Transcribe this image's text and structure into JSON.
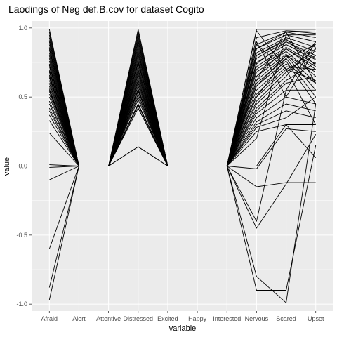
{
  "chart_data": {
    "type": "line",
    "title": "Laodings of Neg def.B.cov for dataset Cogito",
    "xlabel": "variable",
    "ylabel": "value",
    "categories": [
      "Afraid",
      "Alert",
      "Attentive",
      "Distressed",
      "Excited",
      "Happy",
      "Interested",
      "Nervous",
      "Scared",
      "Upset"
    ],
    "ylim": [
      -1.05,
      1.05
    ],
    "yticks": [
      -1.0,
      -0.5,
      0.0,
      0.5,
      1.0
    ],
    "ytick_labels": [
      "-1.0",
      "-0.5",
      "0.0",
      "0.5",
      "1.0"
    ],
    "grid": true,
    "legend": "none",
    "colors": {
      "panel_background": "#ebebeb",
      "grid_major": "#ffffff",
      "line": "#000000"
    },
    "series": [
      {
        "values": [
          0.99,
          0,
          0,
          0.99,
          0,
          0,
          0,
          0.99,
          0.99,
          0.99
        ]
      },
      {
        "values": [
          0.97,
          0,
          0,
          0.97,
          0,
          0,
          0,
          0.93,
          0.98,
          0.96
        ]
      },
      {
        "values": [
          0.95,
          0,
          0,
          0.95,
          0,
          0,
          0,
          0.88,
          0.97,
          0.93
        ]
      },
      {
        "values": [
          0.93,
          0,
          0,
          0.93,
          0,
          0,
          0,
          0.85,
          0.95,
          0.9
        ]
      },
      {
        "values": [
          0.91,
          0,
          0,
          0.91,
          0,
          0,
          0,
          0.82,
          0.93,
          0.86
        ]
      },
      {
        "values": [
          0.9,
          0,
          0,
          0.9,
          0,
          0,
          0,
          0.8,
          0.91,
          0.83
        ]
      },
      {
        "values": [
          0.88,
          0,
          0,
          0.88,
          0,
          0,
          0,
          0.78,
          0.9,
          0.8
        ]
      },
      {
        "values": [
          0.86,
          0,
          0,
          0.86,
          0,
          0,
          0,
          0.75,
          0.88,
          0.77
        ]
      },
      {
        "values": [
          0.84,
          0,
          0,
          0.84,
          0,
          0,
          0,
          0.72,
          0.86,
          0.74
        ]
      },
      {
        "values": [
          0.82,
          0,
          0,
          0.82,
          0,
          0,
          0,
          0.7,
          0.85,
          0.7
        ]
      },
      {
        "values": [
          0.8,
          0,
          0,
          0.8,
          0,
          0,
          0,
          0.68,
          0.83,
          0.65
        ]
      },
      {
        "values": [
          0.78,
          0,
          0,
          0.78,
          0,
          0,
          0,
          0.65,
          0.81,
          0.6
        ]
      },
      {
        "values": [
          0.76,
          0,
          0,
          0.76,
          0,
          0,
          0,
          0.62,
          0.8,
          0.55
        ]
      },
      {
        "values": [
          0.74,
          0,
          0,
          0.74,
          0,
          0,
          0,
          0.6,
          0.78,
          0.5
        ]
      },
      {
        "values": [
          0.72,
          0,
          0,
          0.72,
          0,
          0,
          0,
          0.58,
          0.76,
          0.45
        ]
      },
      {
        "values": [
          0.7,
          0,
          0,
          0.7,
          0,
          0,
          0,
          0.55,
          0.74,
          0.6
        ]
      },
      {
        "values": [
          0.68,
          0,
          0,
          0.68,
          0,
          0,
          0,
          0.52,
          0.72,
          0.7
        ]
      },
      {
        "values": [
          0.66,
          0,
          0,
          0.66,
          0,
          0,
          0,
          0.5,
          0.7,
          0.8
        ]
      },
      {
        "values": [
          0.64,
          0,
          0,
          0.64,
          0,
          0,
          0,
          0.47,
          0.68,
          0.85
        ]
      },
      {
        "values": [
          0.62,
          0,
          0,
          0.62,
          0,
          0,
          0,
          0.45,
          0.65,
          0.9
        ]
      },
      {
        "values": [
          0.6,
          0,
          0,
          0.6,
          0,
          0,
          0,
          0.42,
          0.62,
          0.75
        ]
      },
      {
        "values": [
          0.58,
          0,
          0,
          0.58,
          0,
          0,
          0,
          0.4,
          0.6,
          0.65
        ]
      },
      {
        "values": [
          0.56,
          0,
          0,
          0.56,
          0,
          0,
          0,
          0.38,
          0.55,
          0.55
        ]
      },
      {
        "values": [
          0.54,
          0,
          0,
          0.54,
          0,
          0,
          0,
          0.35,
          0.5,
          0.45
        ]
      },
      {
        "values": [
          0.52,
          0,
          0,
          0.52,
          0,
          0,
          0,
          0.32,
          0.45,
          0.4
        ]
      },
      {
        "values": [
          0.5,
          0,
          0,
          0.5,
          0,
          0,
          0,
          0.3,
          0.4,
          0.35
        ]
      },
      {
        "values": [
          0.45,
          0,
          0,
          0.45,
          0,
          0,
          0,
          0.28,
          0.35,
          0.5
        ]
      },
      {
        "values": [
          0.42,
          0,
          0,
          0.42,
          0,
          0,
          0,
          0.25,
          0.3,
          0.3
        ]
      },
      {
        "values": [
          0.37,
          0,
          0,
          0.6,
          0,
          0,
          0,
          0.88,
          0.7,
          0.62
        ]
      },
      {
        "values": [
          0.33,
          0,
          0,
          0.55,
          0,
          0,
          0,
          0.8,
          0.92,
          0.73
        ]
      },
      {
        "values": [
          0.24,
          0,
          0,
          0.42,
          0,
          0,
          0,
          0.62,
          0.98,
          0.97
        ]
      },
      {
        "values": [
          0.01,
          0,
          0,
          0.14,
          0,
          0,
          0,
          0.0,
          0.3,
          0.06
        ]
      },
      {
        "values": [
          0.0,
          0,
          0,
          0.14,
          0,
          0,
          0,
          -0.02,
          0.27,
          0.25
        ]
      },
      {
        "values": [
          -0.01,
          0,
          0,
          0.45,
          0,
          0,
          0,
          -0.15,
          -0.12,
          -0.12
        ]
      },
      {
        "values": [
          -0.1,
          0,
          0,
          0.5,
          0,
          0,
          0,
          -0.45,
          -0.13,
          0.23
        ]
      },
      {
        "values": [
          -0.6,
          0,
          0,
          0.62,
          0,
          0,
          0,
          -0.9,
          -0.9,
          0.15
        ]
      },
      {
        "values": [
          -0.88,
          0,
          0,
          0.7,
          0,
          0,
          0,
          -0.8,
          -0.99,
          0.45
        ]
      },
      {
        "values": [
          -0.97,
          0,
          0,
          0.82,
          0,
          0,
          0,
          -0.4,
          0.55,
          0.9
        ]
      },
      {
        "values": [
          0.85,
          0,
          0,
          0.75,
          0,
          0,
          0,
          0.98,
          0.7,
          0.3
        ]
      },
      {
        "values": [
          0.73,
          0,
          0,
          0.68,
          0,
          0,
          0,
          0.9,
          0.5,
          0.85
        ]
      },
      {
        "values": [
          0.69,
          0,
          0,
          0.66,
          0,
          0,
          0,
          0.85,
          0.97,
          0.6
        ]
      },
      {
        "values": [
          0.65,
          0,
          0,
          0.62,
          0,
          0,
          0,
          0.2,
          0.95,
          0.95
        ]
      },
      {
        "values": [
          0.6,
          0,
          0,
          0.58,
          0,
          0,
          0,
          0.74,
          0.9,
          0.78
        ]
      },
      {
        "values": [
          0.55,
          0,
          0,
          0.52,
          0,
          0,
          0,
          0.65,
          0.85,
          0.72
        ]
      },
      {
        "values": [
          0.47,
          0,
          0,
          0.48,
          0,
          0,
          0,
          0.58,
          0.8,
          0.68
        ]
      },
      {
        "values": [
          0.4,
          0,
          0,
          0.44,
          0,
          0,
          0,
          0.5,
          0.78,
          0.88
        ]
      }
    ]
  }
}
